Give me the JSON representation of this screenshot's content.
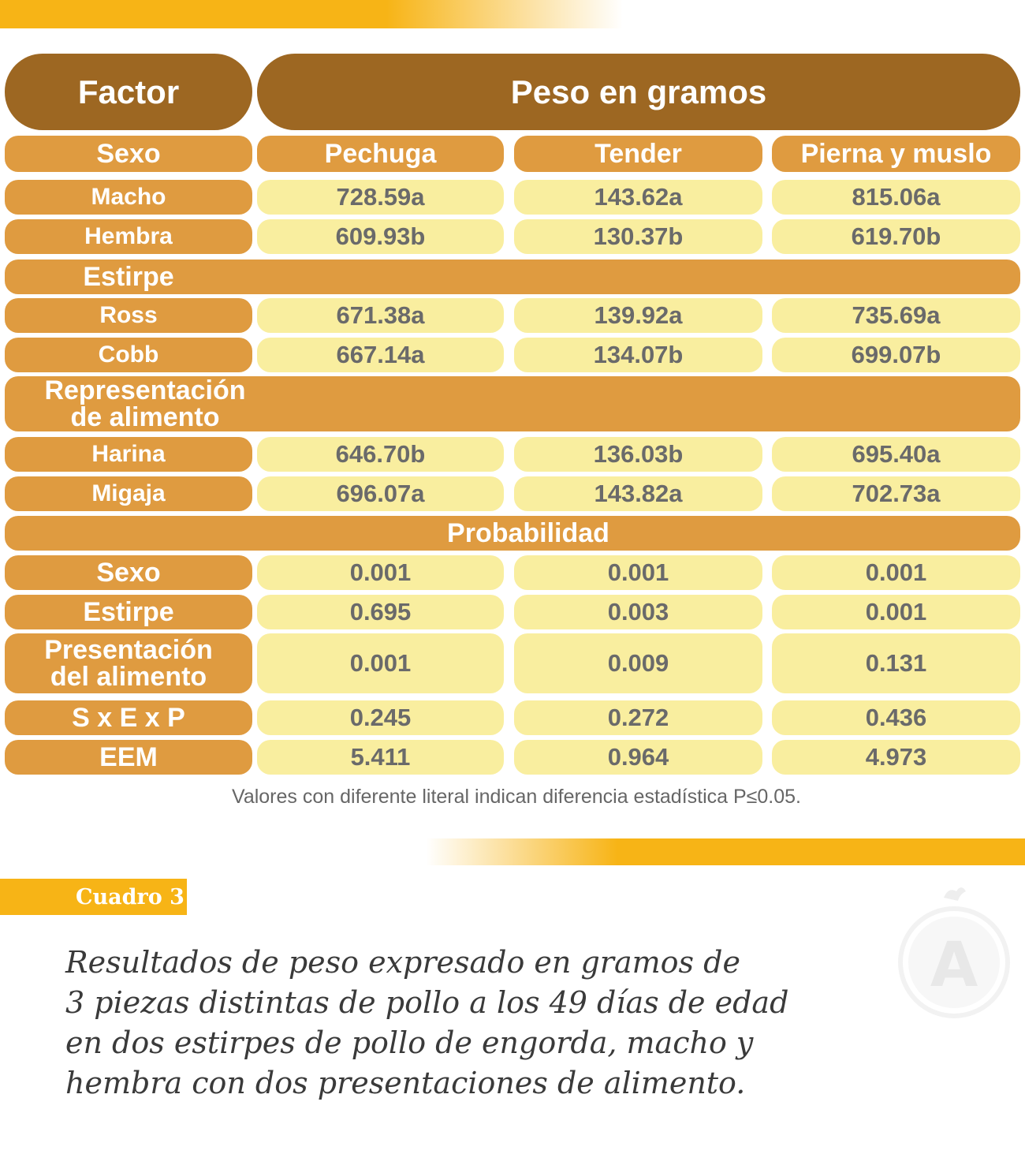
{
  "header": {
    "factor": "Factor",
    "peso": "Peso en gramos"
  },
  "columns": {
    "first": "Sexo",
    "c1": "Pechuga",
    "c2": "Tender",
    "c3": "Pierna y muslo"
  },
  "rows": {
    "macho": {
      "label": "Macho",
      "v1": "728.59a",
      "v2": "143.62a",
      "v3": "815.06a"
    },
    "hembra": {
      "label": "Hembra",
      "v1": "609.93b",
      "v2": "130.37b",
      "v3": "619.70b"
    },
    "estirpe_section": "Estirpe",
    "ross": {
      "label": "Ross",
      "v1": "671.38a",
      "v2": "139.92a",
      "v3": "735.69a"
    },
    "cobb": {
      "label": "Cobb",
      "v1": "667.14a",
      "v2": "134.07b",
      "v3": "699.07b"
    },
    "repr_section_l1": "Representación",
    "repr_section_l2": "de alimento",
    "harina": {
      "label": "Harina",
      "v1": "646.70b",
      "v2": "136.03b",
      "v3": "695.40a"
    },
    "migaja": {
      "label": "Migaja",
      "v1": "696.07a",
      "v2": "143.82a",
      "v3": "702.73a"
    },
    "prob_section": "Probabilidad",
    "p_sexo": {
      "label": "Sexo",
      "v1": "0.001",
      "v2": "0.001",
      "v3": "0.001"
    },
    "p_estirpe": {
      "label": "Estirpe",
      "v1": "0.695",
      "v2": "0.003",
      "v3": "0.001"
    },
    "p_pres": {
      "label_l1": "Presentación",
      "label_l2": "del alimento",
      "v1": "0.001",
      "v2": "0.009",
      "v3": "0.131"
    },
    "p_sxexp": {
      "label": "S x E x P",
      "v1": "0.245",
      "v2": "0.272",
      "v3": "0.436"
    },
    "eem": {
      "label": "EEM",
      "v1": "5.411",
      "v2": "0.964",
      "v3": "4.973"
    }
  },
  "note": "Valores con diferente literal indican diferencia estadística P≤0.05.",
  "cuadro_label": "Cuadro 3",
  "caption": {
    "line1": "Resultados de peso expresado en gramos de",
    "line2": "3 piezas distintas de pollo a los 49 días de edad",
    "line3": "en dos estirpes de pollo de engorda, macho y",
    "line4": "hembra con dos presentaciones de alimento."
  },
  "watermark_letter": "A",
  "colors": {
    "header_brown": "#9d6722",
    "row_orange": "#df9b40",
    "value_yellow": "#f9ee9f",
    "accent_yellow": "#f7b416"
  }
}
